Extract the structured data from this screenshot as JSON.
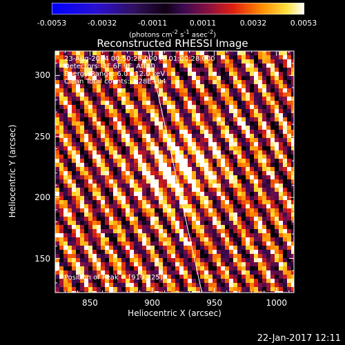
{
  "colorbar": {
    "ticks": [
      "-0.0053",
      "-0.0032",
      "-0.0011",
      "0.0011",
      "0.0032",
      "0.0053"
    ],
    "units_text": "(photons cm",
    "units_sup1": "-2",
    "units_mid": " s",
    "units_sup2": "-1",
    "units_end": " asec",
    "units_sup3": "-2",
    "units_close": ")"
  },
  "annotations": {
    "line1": "23-Aug-2014 00:50:28.000 to 01:00:28.000",
    "line2": "Detectors: 3F 6F 9F, Att: 0",
    "line3": "Energy Range: 6.0 - 12.0 keV",
    "line4": "Clean    Total counts: 2.28E+04",
    "peak": "Position of Peak = [919,225]"
  },
  "timestamp": "22-Jan-2017 12:11",
  "chart_data": {
    "type": "heatmap",
    "title": "Reconstructed RHESSI Image",
    "xlabel": "Heliocentric X (arcsec)",
    "ylabel": "Heliocentric Y (arcsec)",
    "xlim": [
      822,
      1014
    ],
    "ylim": [
      122,
      320
    ],
    "xticks": [
      850,
      900,
      950,
      1000
    ],
    "yticks": [
      150,
      200,
      250,
      300
    ],
    "xtick_labels": [
      "850",
      "900",
      "950",
      "1000"
    ],
    "ytick_labels": [
      "150",
      "200",
      "250",
      "300"
    ],
    "colorbar_range": [
      -0.0053,
      0.0053
    ],
    "colormap": "rhessi-hot (black-purple-red-orange-yellow-white)",
    "peak_position": [
      919,
      225
    ],
    "limb_line": [
      [
        897,
        320
      ],
      [
        940,
        122
      ]
    ],
    "pattern": "diagonal stripes of alternating intensity",
    "grid": false
  },
  "colors": {
    "background": "#000000",
    "text": "#ffffff"
  }
}
